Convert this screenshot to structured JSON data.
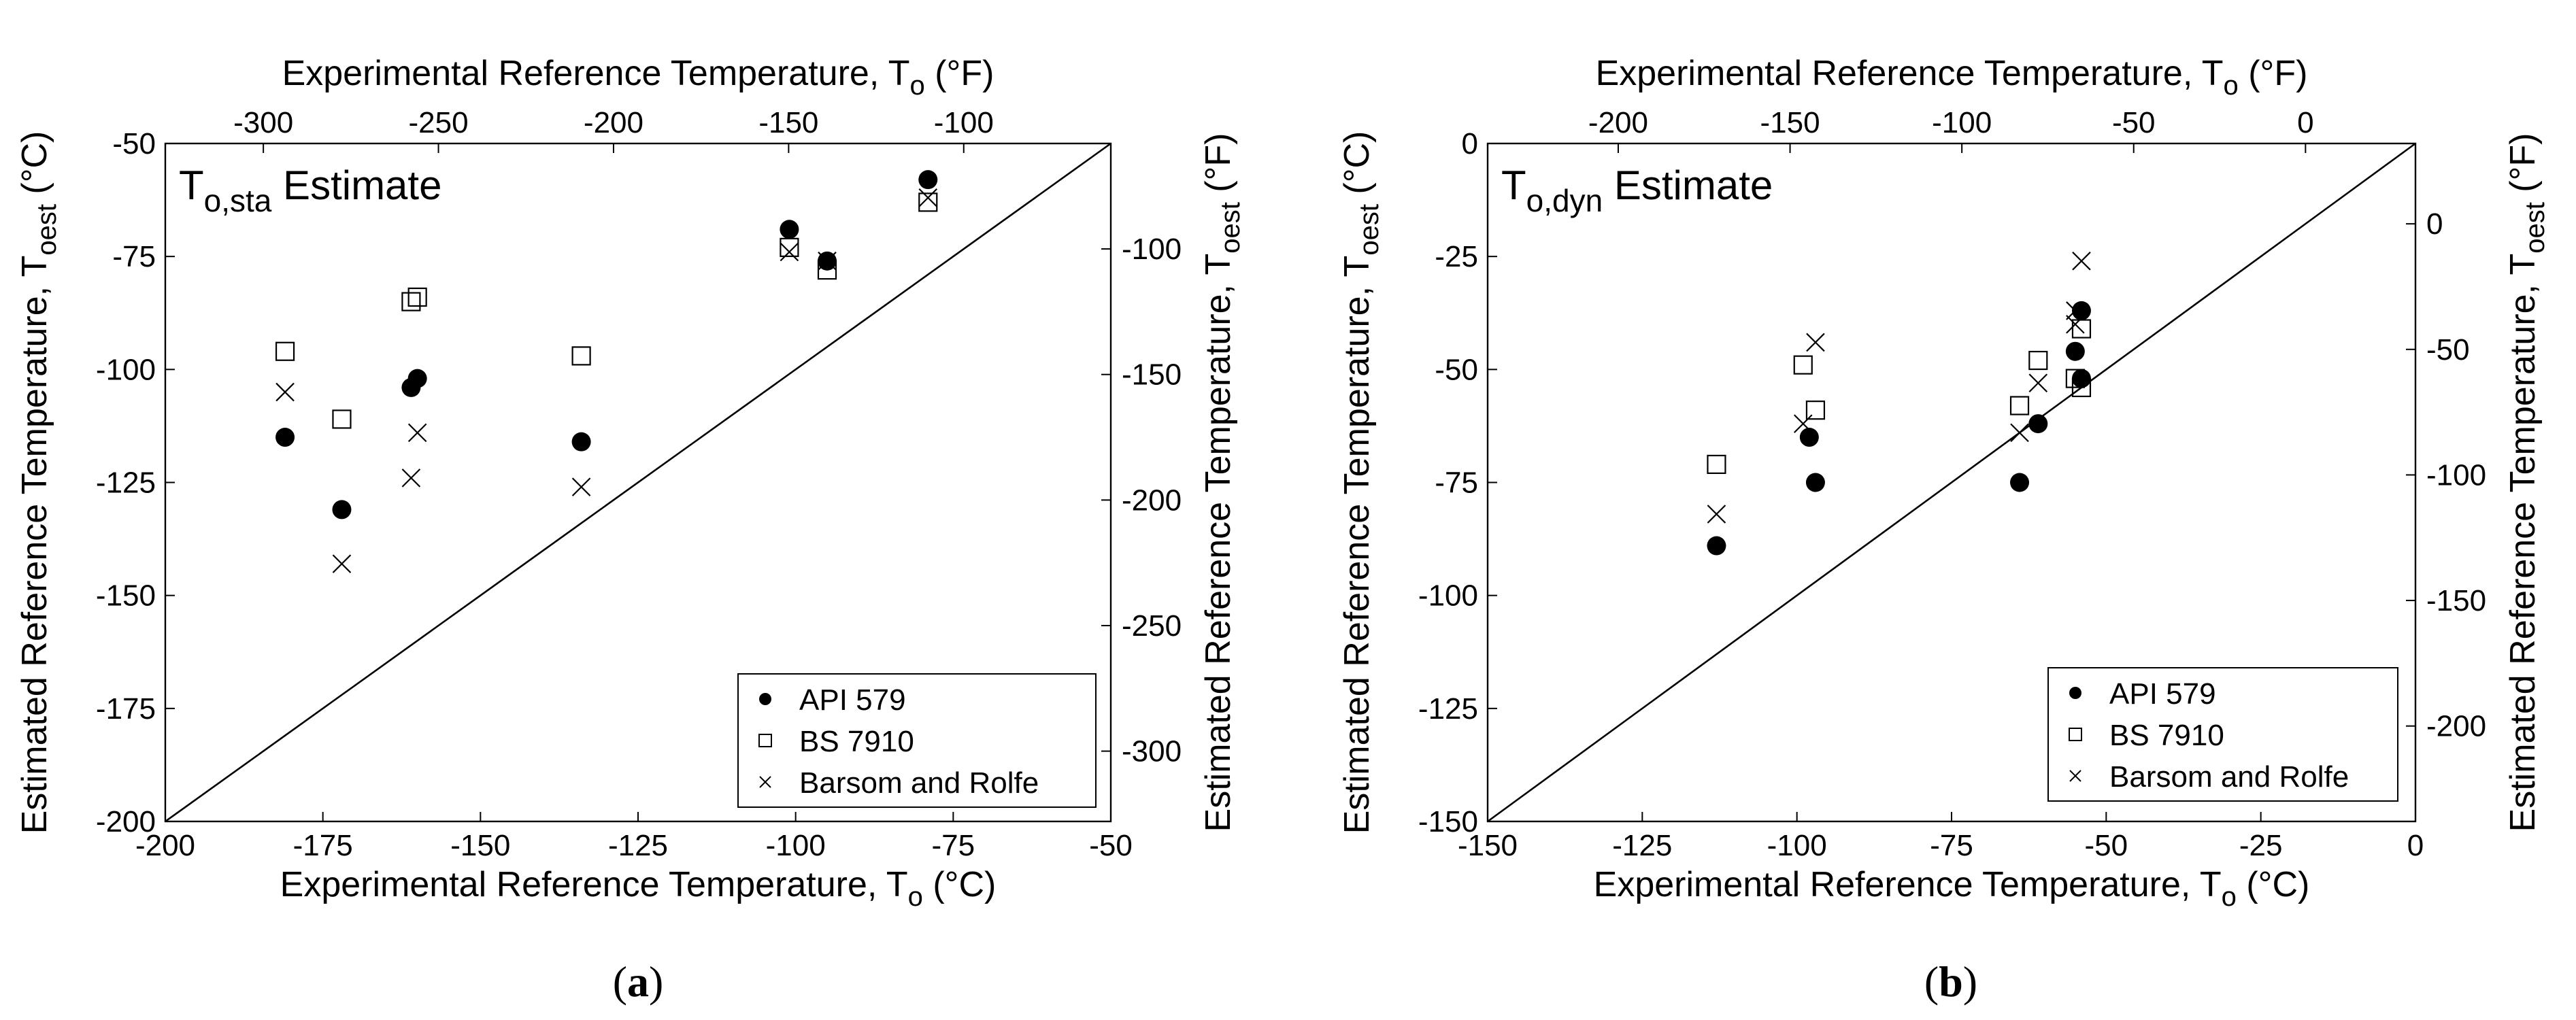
{
  "chart_data": [
    {
      "id": "a",
      "type": "scatter",
      "panel_label": "a",
      "title_main": "T",
      "title_sub": "o,sta",
      "title_rest": " Estimate",
      "xlabel_bottom": {
        "main": "Experimental Reference Temperature, T",
        "sub": "o",
        "unit": " (°C)"
      },
      "xlabel_top": {
        "main": "Experimental Reference Temperature, T",
        "sub": "o",
        "unit": " (°F)"
      },
      "ylabel_left": {
        "main": "Estimated Reference Temperature, T",
        "sub": "oest",
        "unit": " (°C)"
      },
      "ylabel_right": {
        "main": "Estimated Reference Temperature, T",
        "sub": "oest",
        "unit": " (°F)"
      },
      "xlim": [
        -200,
        -50
      ],
      "ylim": [
        -200,
        -50
      ],
      "xticks": [
        -200,
        -175,
        -150,
        -125,
        -100,
        -75,
        -50
      ],
      "yticks": [
        -200,
        -175,
        -150,
        -125,
        -100,
        -75,
        -50
      ],
      "xticks_top_f": [
        -300,
        -250,
        -200,
        -150,
        -100
      ],
      "yticks_right_f": [
        -300,
        -250,
        -200,
        -150,
        -100
      ],
      "legend_position": "bottom-right",
      "series": [
        {
          "name": "API 579",
          "marker": "filled-circle",
          "points": [
            [
              -181,
              -115
            ],
            [
              -172,
              -131
            ],
            [
              -161,
              -104
            ],
            [
              -160,
              -102
            ],
            [
              -134,
              -116
            ],
            [
              -101,
              -69
            ],
            [
              -95,
              -76
            ],
            [
              -79,
              -58
            ]
          ]
        },
        {
          "name": "BS 7910",
          "marker": "open-square",
          "points": [
            [
              -181,
              -96
            ],
            [
              -172,
              -111
            ],
            [
              -161,
              -85
            ],
            [
              -160,
              -84
            ],
            [
              -134,
              -97
            ],
            [
              -101,
              -73
            ],
            [
              -95,
              -78
            ],
            [
              -79,
              -63
            ]
          ]
        },
        {
          "name": "Barsom and Rolfe",
          "marker": "cross",
          "points": [
            [
              -181,
              -105
            ],
            [
              -172,
              -143
            ],
            [
              -160,
              -114
            ],
            [
              -161,
              -124
            ],
            [
              -134,
              -126
            ],
            [
              -101,
              -74
            ],
            [
              -95,
              -76
            ],
            [
              -79,
              -62
            ]
          ]
        }
      ]
    },
    {
      "id": "b",
      "type": "scatter",
      "panel_label": "b",
      "title_main": "T",
      "title_sub": "o,dyn",
      "title_rest": " Estimate",
      "xlabel_bottom": {
        "main": "Experimental Reference Temperature, T",
        "sub": "o",
        "unit": " (°C)"
      },
      "xlabel_top": {
        "main": "Experimental Reference Temperature, T",
        "sub": "o",
        "unit": " (°F)"
      },
      "ylabel_left": {
        "main": "Estimated Reference Temperature, T",
        "sub": "oest",
        "unit": " (°C)"
      },
      "ylabel_right": {
        "main": "Estimated Reference Temperature, T",
        "sub": "oest",
        "unit": " (°F)"
      },
      "xlim": [
        -150,
        0
      ],
      "ylim": [
        -150,
        0
      ],
      "xticks": [
        -150,
        -125,
        -100,
        -75,
        -50,
        -25,
        0
      ],
      "yticks": [
        -150,
        -125,
        -100,
        -75,
        -50,
        -25,
        0
      ],
      "xticks_top_f": [
        -200,
        -150,
        -100,
        -50,
        0
      ],
      "yticks_right_f": [
        -200,
        -150,
        -100,
        -50,
        0
      ],
      "legend_position": "bottom-right",
      "series": [
        {
          "name": "API 579",
          "marker": "filled-circle",
          "points": [
            [
              -113,
              -89
            ],
            [
              -98,
              -65
            ],
            [
              -97,
              -75
            ],
            [
              -64,
              -75
            ],
            [
              -61,
              -62
            ],
            [
              -55,
              -46
            ],
            [
              -54,
              -37
            ],
            [
              -54,
              -52
            ]
          ]
        },
        {
          "name": "BS 7910",
          "marker": "open-square",
          "points": [
            [
              -113,
              -71
            ],
            [
              -99,
              -49
            ],
            [
              -97,
              -59
            ],
            [
              -64,
              -58
            ],
            [
              -61,
              -48
            ],
            [
              -55,
              -52
            ],
            [
              -54,
              -41
            ],
            [
              -54,
              -54
            ]
          ]
        },
        {
          "name": "Barsom and Rolfe",
          "marker": "cross",
          "points": [
            [
              -113,
              -82
            ],
            [
              -99,
              -62
            ],
            [
              -97,
              -44
            ],
            [
              -64,
              -64
            ],
            [
              -61,
              -53
            ],
            [
              -55,
              -37
            ],
            [
              -55,
              -40
            ],
            [
              -54,
              -26
            ]
          ]
        }
      ]
    }
  ]
}
